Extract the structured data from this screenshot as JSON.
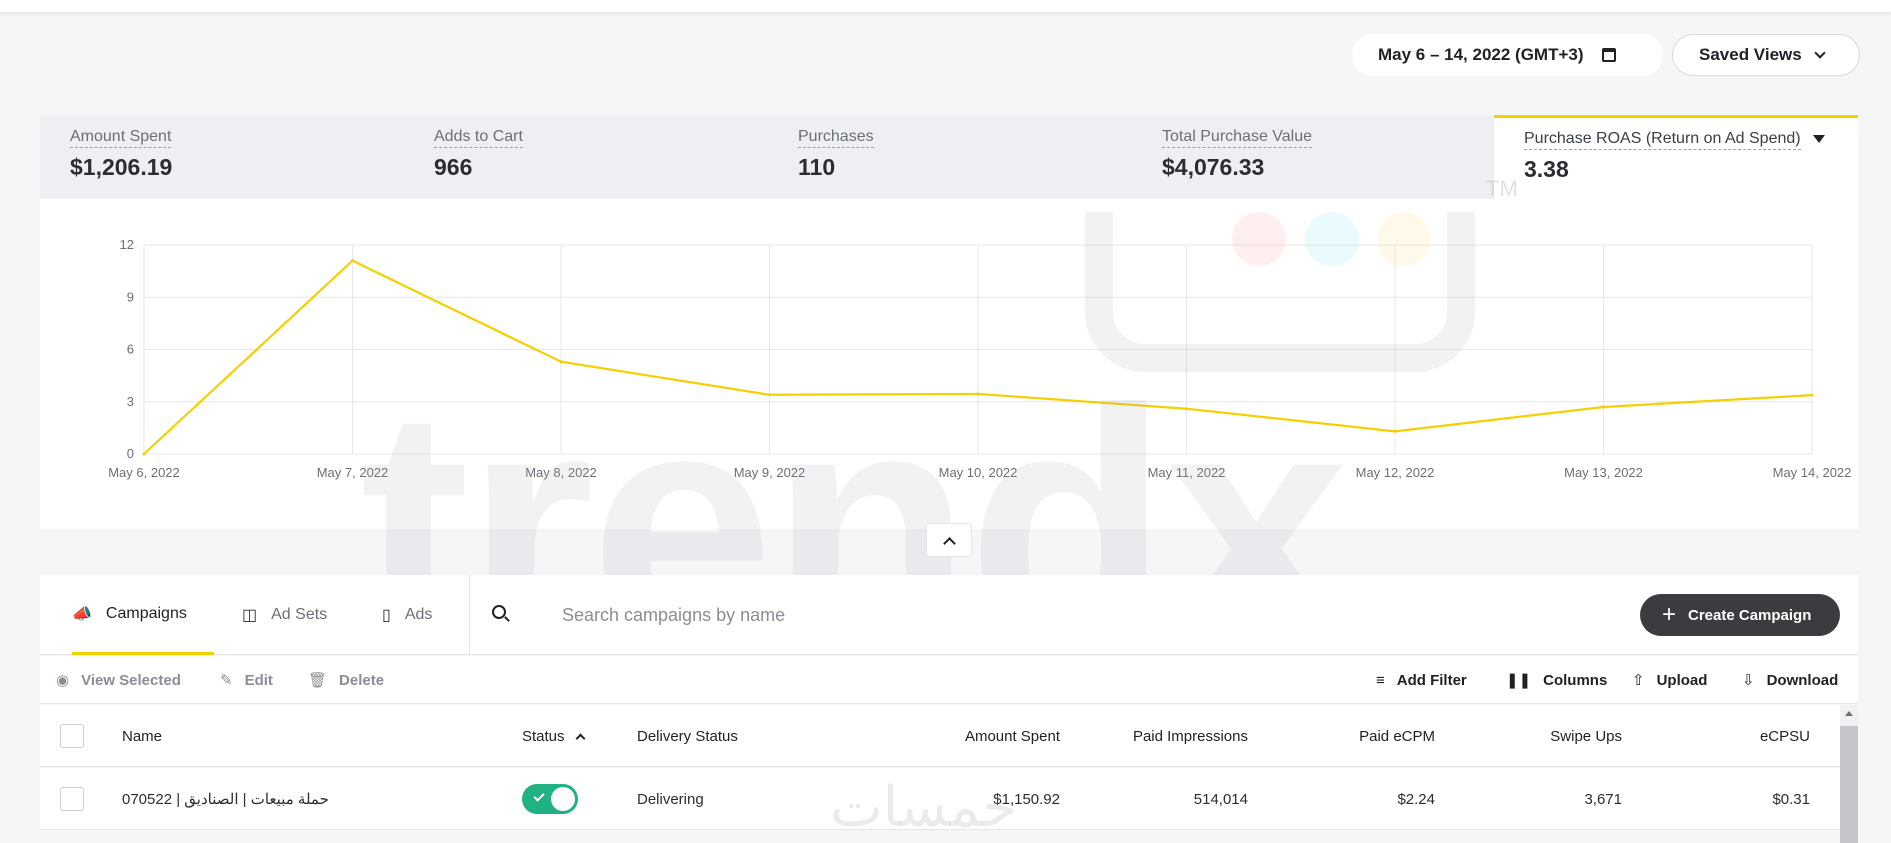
{
  "header": {
    "date_range": "May 6 – 14, 2022 (GMT+3)",
    "saved_views": "Saved Views"
  },
  "metrics": [
    {
      "label": "Amount Spent",
      "value": "$1,206.19"
    },
    {
      "label": "Adds to Cart",
      "value": "966"
    },
    {
      "label": "Purchases",
      "value": "110"
    },
    {
      "label": "Total Purchase Value",
      "value": "$4,076.33"
    },
    {
      "label": "Purchase ROAS (Return on Ad Spend)",
      "value": "3.38",
      "active": true
    }
  ],
  "chart_data": {
    "type": "line",
    "x": [
      "May 6, 2022",
      "May 7, 2022",
      "May 8, 2022",
      "May 9, 2022",
      "May 10, 2022",
      "May 11, 2022",
      "May 12, 2022",
      "May 13, 2022",
      "May 14, 2022"
    ],
    "series": [
      {
        "values": [
          0,
          11.1,
          5.3,
          3.4,
          3.45,
          2.6,
          1.3,
          2.7,
          3.38
        ]
      }
    ],
    "yticks": [
      0,
      3,
      6,
      9,
      12
    ],
    "ylim": [
      0,
      12
    ],
    "grid": true,
    "line_color": "#f5d000"
  },
  "watermark": {
    "text": "trendx",
    "tm": "TM",
    "arabic": "خمسات"
  },
  "tabs": [
    {
      "label": "Campaigns",
      "icon": "megaphone-icon",
      "active": true
    },
    {
      "label": "Ad Sets",
      "icon": "ad-sets-icon"
    },
    {
      "label": "Ads",
      "icon": "ad-icon"
    }
  ],
  "search": {
    "placeholder": "Search campaigns by name"
  },
  "create_button": "Create Campaign",
  "actions_left": [
    {
      "label": "View Selected",
      "icon": "eye-icon"
    },
    {
      "label": "Edit",
      "icon": "pencil-icon"
    },
    {
      "label": "Delete",
      "icon": "trash-icon"
    }
  ],
  "actions_right": [
    {
      "label": "Add Filter",
      "icon": "filter-icon"
    },
    {
      "label": "Columns",
      "icon": "columns-icon"
    },
    {
      "label": "Upload",
      "icon": "upload-icon"
    },
    {
      "label": "Download",
      "icon": "download-icon"
    }
  ],
  "table": {
    "columns": [
      "Name",
      "Status",
      "Delivery Status",
      "Amount Spent",
      "Paid Impressions",
      "Paid eCPM",
      "Swipe Ups",
      "eCPSU"
    ],
    "rows": [
      {
        "name": "070522 | حملة مبيعات | الصناديق",
        "status_on": true,
        "delivery": "Delivering",
        "amount_spent": "$1,150.92",
        "paid_impressions": "514,014",
        "paid_ecpm": "$2.24",
        "swipe_ups": "3,671",
        "ecpsu": "$0.31"
      }
    ]
  },
  "colors": {
    "accent": "#f5d000",
    "toggle_on": "#20b283",
    "button_dark": "#3a3c40"
  }
}
